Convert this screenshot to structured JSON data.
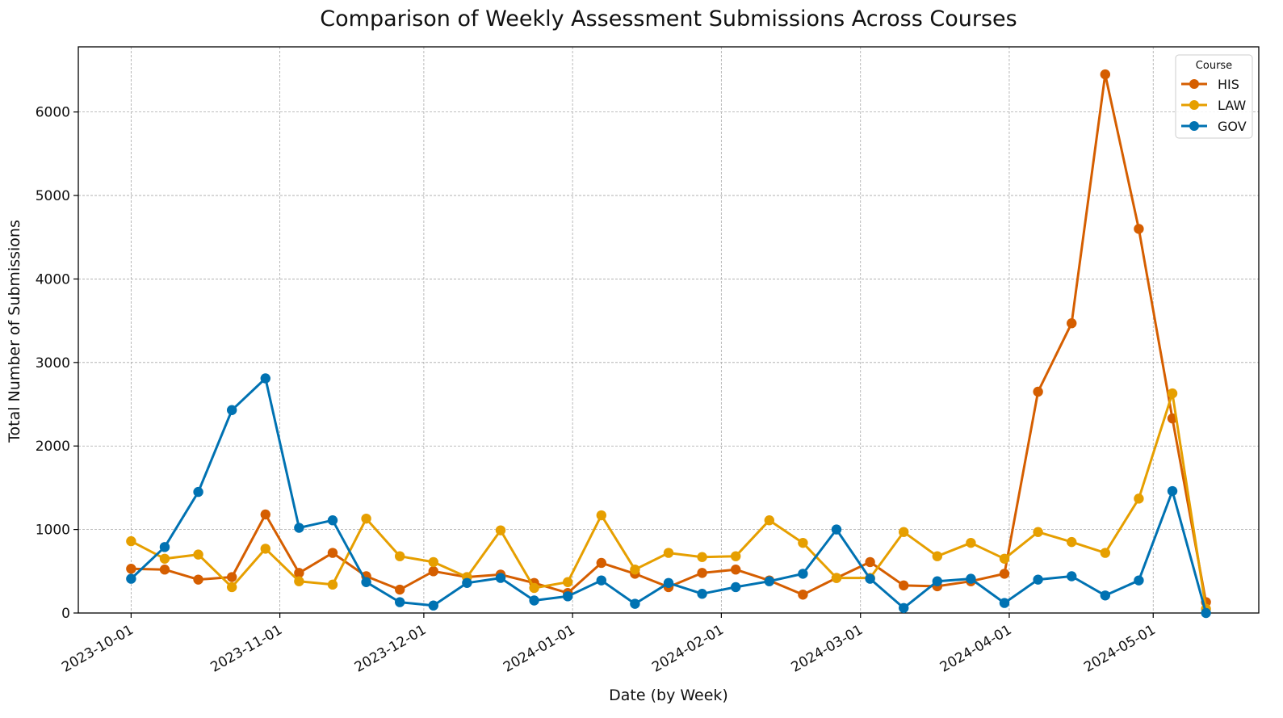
{
  "chart_data": {
    "type": "line",
    "title": "Comparison of Weekly Assessment Submissions Across Courses",
    "xlabel": "Date (by Week)",
    "ylabel": "Total Number of Submissions",
    "x": [
      "2023-10-01",
      "2023-10-08",
      "2023-10-15",
      "2023-10-22",
      "2023-10-29",
      "2023-11-05",
      "2023-11-12",
      "2023-11-19",
      "2023-11-26",
      "2023-12-03",
      "2023-12-10",
      "2023-12-17",
      "2023-12-24",
      "2023-12-31",
      "2024-01-07",
      "2024-01-14",
      "2024-01-21",
      "2024-01-28",
      "2024-02-04",
      "2024-02-11",
      "2024-02-18",
      "2024-02-25",
      "2024-03-03",
      "2024-03-10",
      "2024-03-17",
      "2024-03-24",
      "2024-03-31",
      "2024-04-07",
      "2024-04-14",
      "2024-04-21",
      "2024-04-28",
      "2024-05-05",
      "2024-05-12"
    ],
    "xlim": [
      "2023-09-20",
      "2024-05-23"
    ],
    "xticks": [
      "2023-10-01",
      "2023-11-01",
      "2023-12-01",
      "2024-01-01",
      "2024-02-01",
      "2024-03-01",
      "2024-04-01",
      "2024-05-01"
    ],
    "ylim": [
      0,
      6780
    ],
    "yticks": [
      0,
      1000,
      2000,
      3000,
      4000,
      5000,
      6000
    ],
    "grid": true,
    "legend": {
      "title": "Course",
      "position": "top-right"
    },
    "series": [
      {
        "name": "HIS",
        "color": "#D55E00",
        "values": [
          530,
          520,
          400,
          430,
          1180,
          480,
          720,
          440,
          280,
          500,
          430,
          460,
          360,
          240,
          600,
          470,
          310,
          480,
          520,
          390,
          220,
          420,
          610,
          330,
          320,
          380,
          470,
          2650,
          3470,
          6450,
          4600,
          2330,
          130
        ]
      },
      {
        "name": "LAW",
        "color": "#E69F00",
        "values": [
          860,
          650,
          700,
          310,
          770,
          380,
          340,
          1130,
          680,
          610,
          430,
          990,
          300,
          370,
          1170,
          520,
          720,
          670,
          680,
          1110,
          840,
          420,
          420,
          970,
          680,
          840,
          650,
          970,
          850,
          720,
          1370,
          2630,
          50
        ]
      },
      {
        "name": "GOV",
        "color": "#0072B2",
        "values": [
          410,
          790,
          1450,
          2430,
          2810,
          1020,
          1110,
          370,
          130,
          90,
          360,
          420,
          150,
          200,
          390,
          110,
          360,
          230,
          310,
          380,
          470,
          1000,
          410,
          60,
          380,
          410,
          120,
          400,
          440,
          210,
          390,
          1460,
          0
        ]
      }
    ]
  }
}
